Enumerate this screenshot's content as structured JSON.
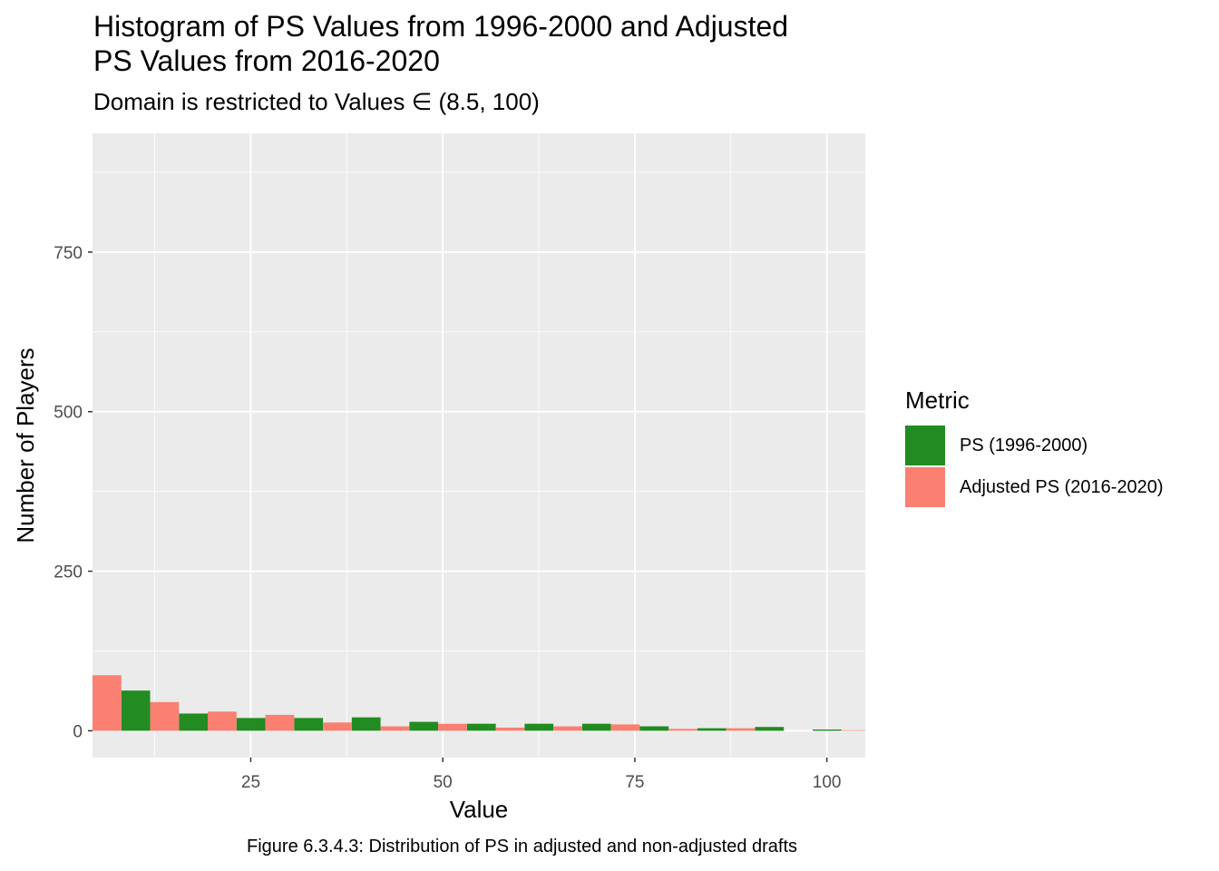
{
  "chart_data": {
    "type": "bar",
    "title": "Histogram of PS Values from 1996-2000 and Adjusted PS Values from 2016-2020",
    "title_lines": [
      "Histogram of PS Values from 1996-2000 and Adjusted",
      "PS Values from 2016-2020"
    ],
    "subtitle": "Domain is restricted to Values ∈ (8.5, 100)",
    "caption": "Figure 6.3.4.3: Distribution of PS in adjusted and non-adjusted drafts",
    "xlabel": "Value",
    "ylabel": "Number of Players",
    "xlim": [
      4.4,
      105
    ],
    "ylim": [
      -42,
      936
    ],
    "x_ticks": [
      25,
      50,
      75,
      100
    ],
    "y_ticks": [
      0,
      250,
      500,
      750
    ],
    "bin_width": 7.5,
    "grid": true,
    "legend": {
      "title": "Metric",
      "position": "right"
    },
    "series": [
      {
        "name": "PS (1996-2000)",
        "color": "#228B22",
        "bins": [
          {
            "x0": 8.15,
            "x1": 11.9,
            "value": 63
          },
          {
            "x0": 15.65,
            "x1": 19.4,
            "value": 27
          },
          {
            "x0": 23.15,
            "x1": 26.9,
            "value": 20
          },
          {
            "x0": 30.65,
            "x1": 34.4,
            "value": 20
          },
          {
            "x0": 38.15,
            "x1": 41.9,
            "value": 21
          },
          {
            "x0": 45.65,
            "x1": 49.4,
            "value": 14
          },
          {
            "x0": 53.15,
            "x1": 56.9,
            "value": 11
          },
          {
            "x0": 60.65,
            "x1": 64.4,
            "value": 11
          },
          {
            "x0": 68.15,
            "x1": 71.9,
            "value": 11
          },
          {
            "x0": 75.65,
            "x1": 79.4,
            "value": 7
          },
          {
            "x0": 83.15,
            "x1": 86.9,
            "value": 4
          },
          {
            "x0": 90.65,
            "x1": 94.4,
            "value": 6
          },
          {
            "x0": 98.15,
            "x1": 101.9,
            "value": 2
          }
        ]
      },
      {
        "name": "Adjusted PS (2016-2020)",
        "color": "#FA8072",
        "bins": [
          {
            "x0": 4.4,
            "x1": 8.15,
            "value": 87
          },
          {
            "x0": 11.9,
            "x1": 15.65,
            "value": 45
          },
          {
            "x0": 19.4,
            "x1": 23.15,
            "value": 30
          },
          {
            "x0": 26.9,
            "x1": 30.65,
            "value": 25
          },
          {
            "x0": 34.4,
            "x1": 38.15,
            "value": 13
          },
          {
            "x0": 41.9,
            "x1": 45.65,
            "value": 7
          },
          {
            "x0": 49.4,
            "x1": 53.15,
            "value": 11
          },
          {
            "x0": 56.9,
            "x1": 60.65,
            "value": 5
          },
          {
            "x0": 64.4,
            "x1": 68.15,
            "value": 7
          },
          {
            "x0": 71.9,
            "x1": 75.65,
            "value": 10
          },
          {
            "x0": 79.4,
            "x1": 83.15,
            "value": 3
          },
          {
            "x0": 86.9,
            "x1": 90.65,
            "value": 4
          },
          {
            "x0": 94.4,
            "x1": 98.15,
            "value": 0
          },
          {
            "x0": 101.9,
            "x1": 105.0,
            "value": 1
          }
        ]
      }
    ]
  },
  "style": {
    "panel_background": "#EBEBEB",
    "grid_major": "#FFFFFF",
    "tick_color": "#333333",
    "tick_label_color": "#4D4D4D"
  }
}
